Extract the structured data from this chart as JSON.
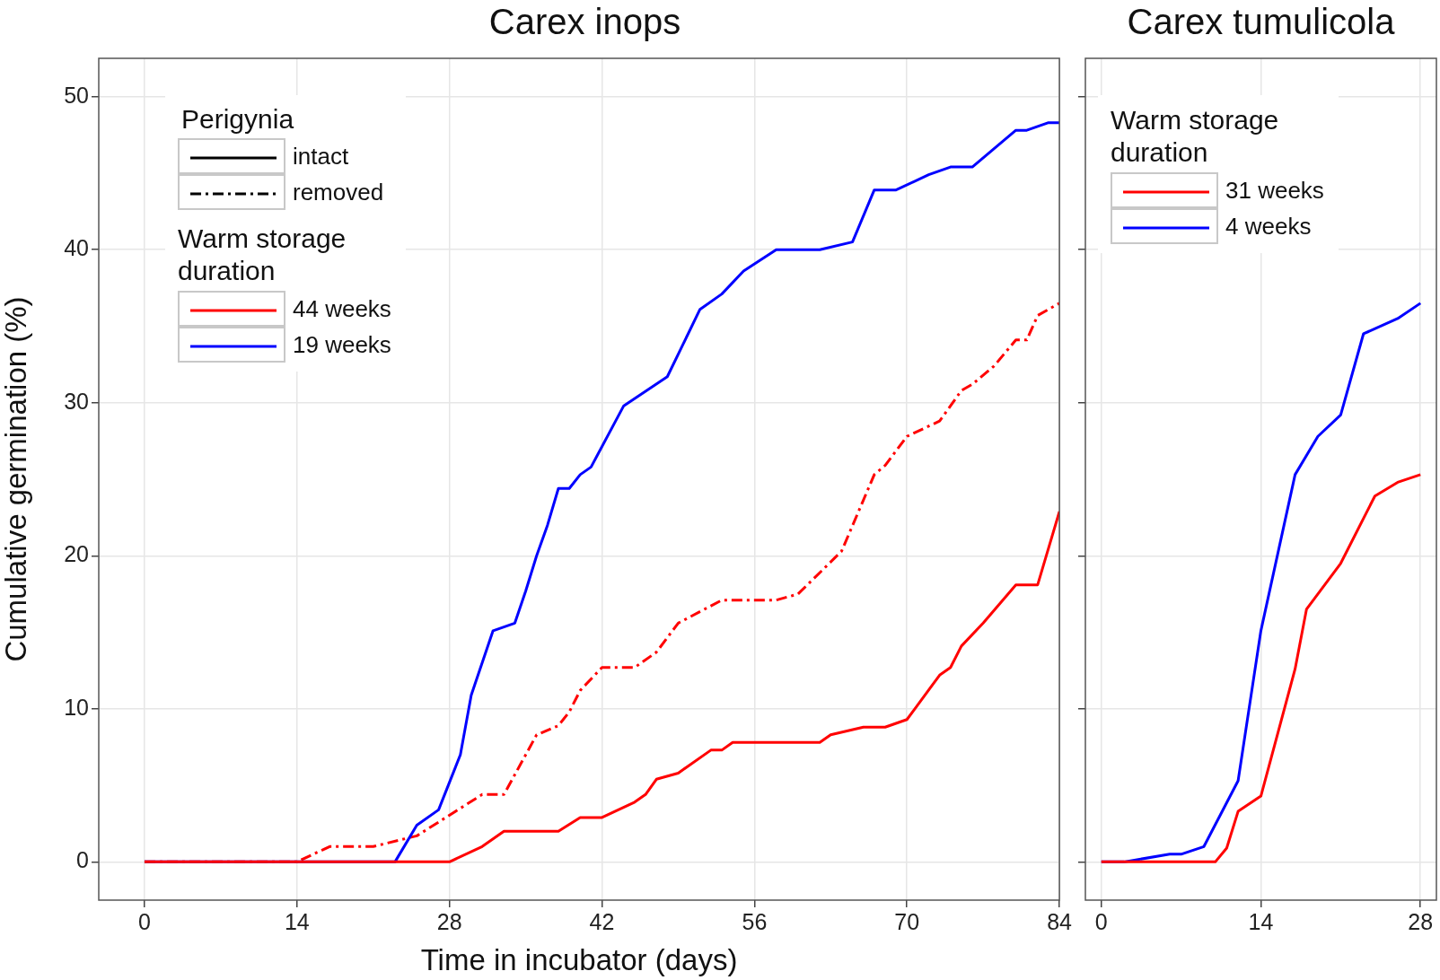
{
  "chart_data": [
    {
      "type": "line",
      "title": "Carex inops",
      "xlabel": "Time in incubator (days)",
      "ylabel": "Cumulative germination (%)",
      "legend_title": "Warm storage duration",
      "legend": "top left",
      "grid": true,
      "xlim": [
        -4.2,
        84
      ],
      "xticks": [
        0,
        14,
        28,
        42,
        56,
        70,
        84
      ],
      "ylim": [
        -2.5,
        52.5
      ],
      "yticks": [
        0,
        10,
        20,
        30,
        40,
        50
      ],
      "annotations": [
        "Perigynia",
        "intact",
        "removed"
      ],
      "series": [
        {
          "name": "44 weeks",
          "color": "#ff0000",
          "line_style": "solid",
          "x": [
            0,
            28,
            31,
            33,
            38,
            40,
            42,
            45,
            46,
            47,
            49,
            52,
            53,
            54,
            62,
            63,
            66,
            68,
            70,
            73,
            74,
            75,
            77,
            80,
            82,
            84
          ],
          "values": [
            0,
            0,
            1,
            2,
            2,
            2.9,
            2.9,
            3.9,
            4.4,
            5.4,
            5.8,
            7.3,
            7.3,
            7.8,
            7.8,
            8.3,
            8.8,
            8.8,
            9.3,
            12.2,
            12.7,
            14.1,
            15.6,
            18.1,
            18.1,
            22.9
          ]
        },
        {
          "name": "19 weeks",
          "color": "#0000ff",
          "line_style": "solid",
          "x": [
            0,
            23,
            25,
            27,
            29,
            30,
            32,
            34,
            35,
            36,
            37,
            38,
            39,
            40,
            41,
            44,
            48,
            51,
            53,
            55,
            58,
            62,
            65,
            67,
            69,
            72,
            74,
            76,
            80,
            81,
            83,
            84
          ],
          "values": [
            0,
            0,
            2.4,
            3.4,
            7,
            10.9,
            15.1,
            15.6,
            17.7,
            20,
            22,
            24.4,
            24.4,
            25.3,
            25.8,
            29.8,
            31.7,
            36.1,
            37.1,
            38.6,
            40,
            40,
            40.5,
            43.9,
            43.9,
            44.9,
            45.4,
            45.4,
            47.8,
            47.8,
            48.3,
            48.3
          ]
        },
        {
          "color": "#ff0000",
          "line_style": "dashed",
          "x": [
            0,
            14,
            17,
            21,
            25,
            27,
            31,
            33,
            36,
            38,
            39,
            40,
            42,
            45,
            47,
            49,
            53,
            58,
            60,
            63,
            64,
            67,
            68,
            70,
            73,
            75,
            76,
            78,
            80,
            81,
            82,
            84
          ],
          "values": [
            0,
            0,
            1,
            1,
            1.7,
            2.6,
            4.4,
            4.4,
            8.3,
            8.9,
            9.8,
            11.2,
            12.7,
            12.7,
            13.7,
            15.6,
            17.1,
            17.1,
            17.5,
            19.6,
            20.3,
            25.3,
            25.9,
            27.8,
            28.8,
            30.8,
            31.2,
            32.4,
            34.1,
            34.1,
            35.7,
            36.5
          ]
        }
      ]
    },
    {
      "type": "line",
      "title": "Carex tumulicola",
      "legend_title": "Warm storage duration",
      "legend": "top left",
      "grid": true,
      "tick_labels": "x",
      "xlim": [
        -1.4,
        29.4
      ],
      "xticks": [
        0,
        14,
        28
      ],
      "ylim": [
        -2.5,
        52.5
      ],
      "yticks": [
        0,
        10,
        20,
        30,
        40,
        50
      ],
      "series": [
        {
          "name": "31 weeks",
          "color": "#ff0000",
          "x": [
            0,
            10,
            11,
            12,
            14,
            17,
            18,
            21,
            24,
            26,
            28
          ],
          "values": [
            0,
            0,
            0.9,
            3.3,
            4.3,
            12.6,
            16.5,
            19.5,
            23.9,
            24.8,
            25.3
          ]
        },
        {
          "name": "4 weeks",
          "color": "#0000ff",
          "x": [
            0,
            2,
            6,
            7,
            9,
            12,
            14,
            17,
            19,
            21,
            23,
            26,
            28
          ],
          "values": [
            0,
            0,
            0.5,
            0.5,
            1,
            5.3,
            15.1,
            25.3,
            27.8,
            29.2,
            34.5,
            35.5,
            36.5
          ]
        }
      ]
    }
  ]
}
